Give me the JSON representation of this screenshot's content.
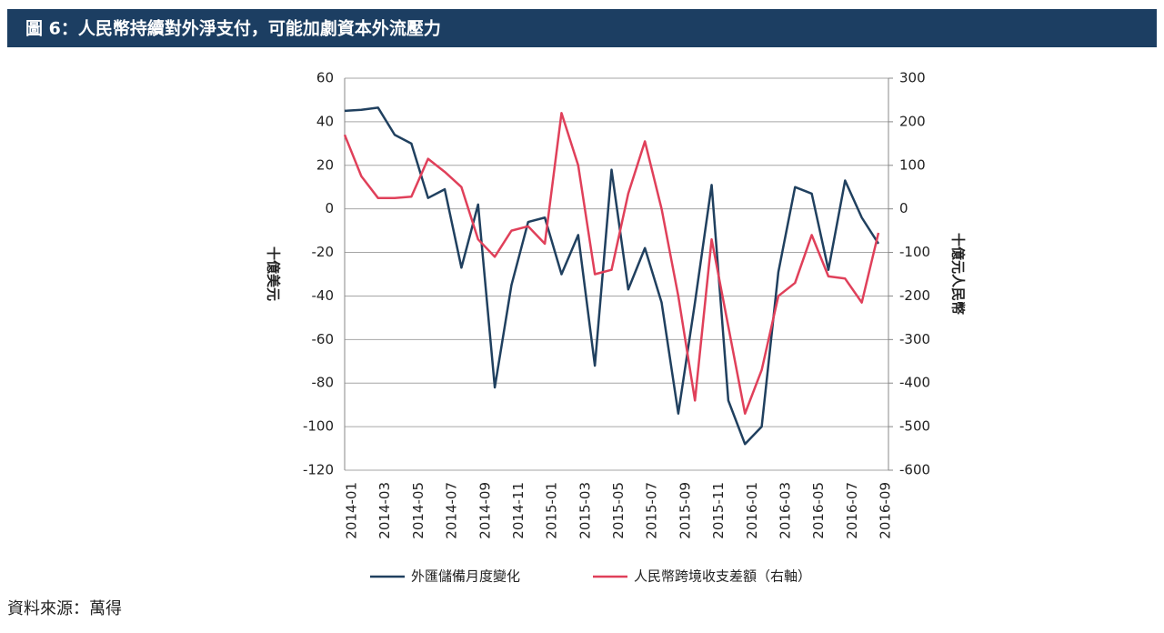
{
  "chart_data": {
    "type": "line",
    "title": "圖 6：人民幣持續對外淨支付，可能加劇資本外流壓力",
    "source": "資料來源：萬得",
    "ylabel": "十億美元",
    "y2label": "十億元人民幣",
    "categories": [
      "2014-01",
      null,
      "2014-03",
      null,
      "2014-05",
      null,
      "2014-07",
      null,
      "2014-09",
      null,
      "2014-11",
      null,
      "2015-01",
      null,
      "2015-03",
      null,
      "2015-05",
      null,
      "2015-07",
      null,
      "2015-09",
      null,
      "2015-11",
      null,
      "2016-01",
      null,
      "2016-03",
      null,
      "2016-05",
      null,
      "2016-07",
      null,
      "2016-09"
    ],
    "series": [
      {
        "name": "外匯儲備月度變化",
        "color": "#20405f",
        "values": [
          45,
          45.5,
          46.5,
          34,
          30,
          5,
          9,
          -27,
          2,
          -82,
          -35,
          -6,
          -4,
          -30,
          -12,
          -72,
          18,
          -37,
          -18,
          -43,
          -94,
          -43,
          11,
          -88,
          -108,
          -100,
          -29,
          10,
          7,
          -28,
          13,
          -4,
          -16
        ]
      },
      {
        "name": "人民幣跨境收支差額（右軸）",
        "color": "#e0405a",
        "axis": "y2",
        "values": [
          170,
          75,
          25,
          25,
          28,
          115,
          85,
          50,
          -70,
          -110,
          -50,
          -40,
          -80,
          220,
          100,
          -150,
          -140,
          35,
          155,
          0,
          -200,
          -440,
          -70,
          -270,
          -470,
          -370,
          -200,
          -170,
          -60,
          -155,
          -160,
          -215,
          -55
        ]
      }
    ],
    "ylim": [
      -120,
      60
    ],
    "yticks": [
      -120,
      -100,
      -80,
      -60,
      -40,
      -20,
      0,
      20,
      40,
      60
    ],
    "y2lim": [
      -600,
      300
    ],
    "y2ticks": [
      -600,
      -500,
      -400,
      -300,
      -200,
      -100,
      0,
      100,
      200,
      300
    ],
    "grid": true
  }
}
